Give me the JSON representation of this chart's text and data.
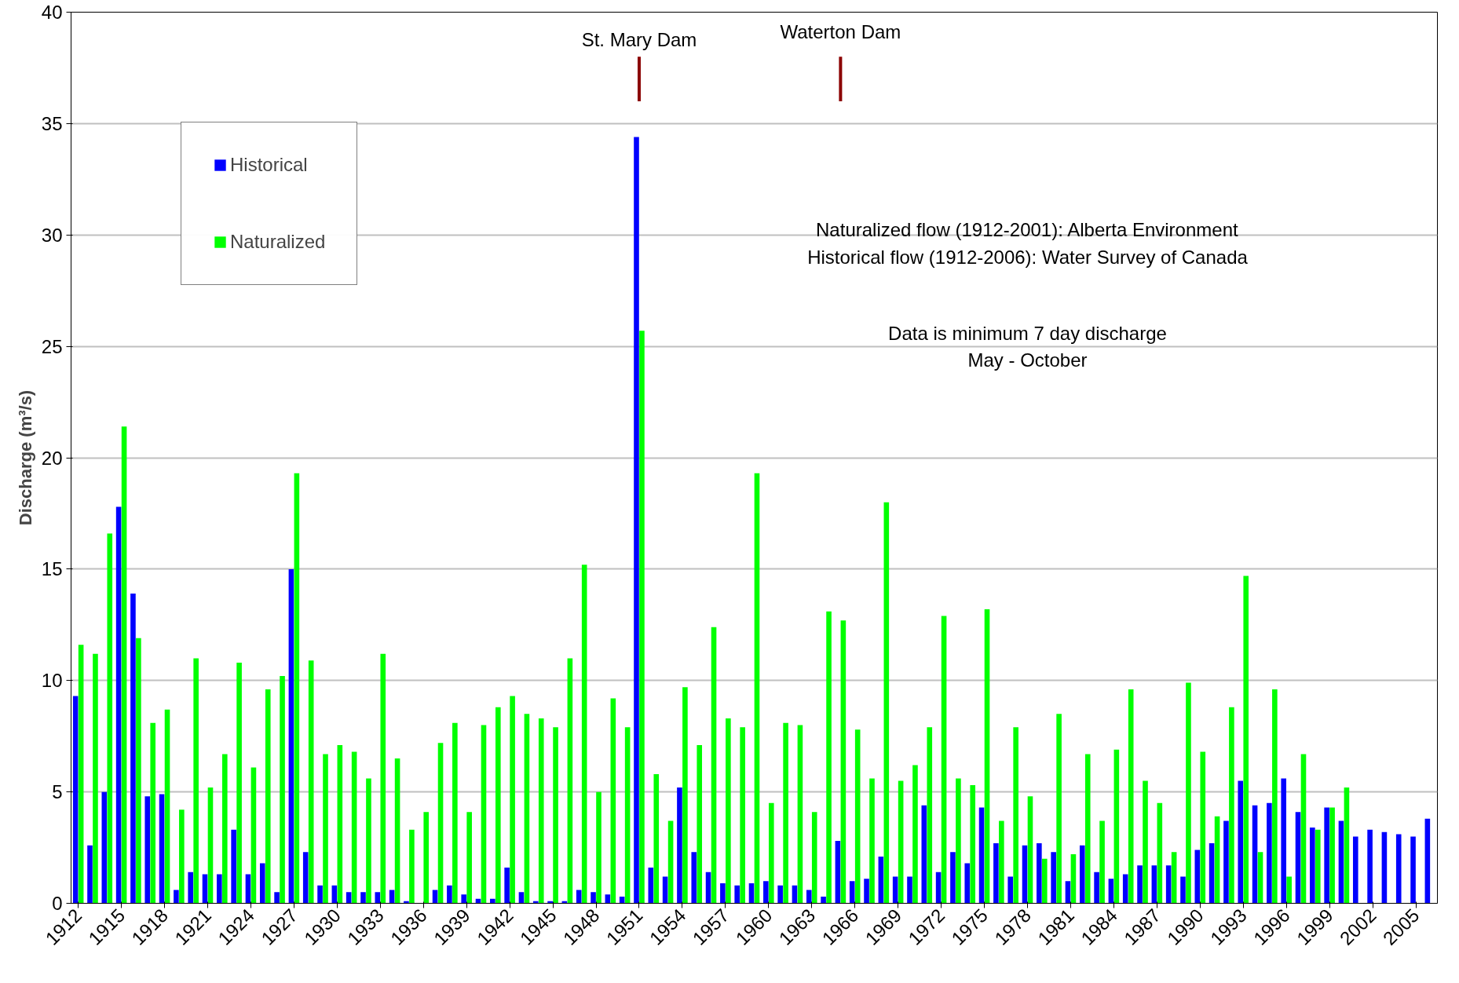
{
  "chart_data": {
    "type": "bar",
    "ylabel": "Discharge (m³/s)",
    "x": [
      1912,
      1913,
      1914,
      1915,
      1916,
      1917,
      1918,
      1919,
      1920,
      1921,
      1922,
      1923,
      1924,
      1925,
      1926,
      1927,
      1928,
      1929,
      1930,
      1931,
      1932,
      1933,
      1934,
      1935,
      1936,
      1937,
      1938,
      1939,
      1940,
      1941,
      1942,
      1943,
      1944,
      1945,
      1946,
      1947,
      1948,
      1949,
      1950,
      1951,
      1952,
      1953,
      1954,
      1955,
      1956,
      1957,
      1958,
      1959,
      1960,
      1961,
      1962,
      1963,
      1964,
      1965,
      1966,
      1967,
      1968,
      1969,
      1970,
      1971,
      1972,
      1973,
      1974,
      1975,
      1976,
      1977,
      1978,
      1979,
      1980,
      1981,
      1982,
      1983,
      1984,
      1985,
      1986,
      1987,
      1988,
      1989,
      1990,
      1991,
      1992,
      1993,
      1994,
      1995,
      1996,
      1997,
      1998,
      1999,
      2000,
      2001,
      2002,
      2003,
      2004,
      2005,
      2006
    ],
    "series": [
      {
        "name": "Historical",
        "color": "#0000ff",
        "values": [
          9.3,
          2.6,
          5.0,
          17.8,
          13.9,
          4.8,
          4.9,
          0.6,
          1.4,
          1.3,
          1.3,
          3.3,
          1.3,
          1.8,
          0.5,
          15.0,
          2.3,
          0.8,
          0.8,
          0.5,
          0.5,
          0.5,
          0.6,
          0.1,
          0.0,
          0.6,
          0.8,
          0.4,
          0.2,
          0.2,
          1.6,
          0.5,
          0.1,
          0.1,
          0.1,
          0.6,
          0.5,
          0.4,
          0.3,
          34.4,
          1.6,
          1.2,
          5.2,
          2.3,
          1.4,
          0.9,
          0.8,
          0.9,
          1.0,
          0.8,
          0.8,
          0.6,
          0.3,
          2.8,
          1.0,
          1.1,
          2.1,
          1.2,
          1.2,
          4.4,
          1.4,
          2.3,
          1.8,
          4.3,
          2.7,
          1.2,
          2.6,
          2.7,
          2.3,
          1.0,
          2.6,
          1.4,
          1.1,
          1.3,
          1.7,
          1.7,
          1.7,
          1.2,
          2.4,
          2.7,
          3.7,
          5.5,
          4.4,
          4.5,
          5.6,
          4.1,
          3.4,
          4.3,
          3.7,
          3.0,
          3.3,
          3.2,
          3.1,
          3.0,
          3.8
        ]
      },
      {
        "name": "Naturalized",
        "color": "#00ff00",
        "values": [
          11.6,
          11.2,
          16.6,
          21.4,
          11.9,
          8.1,
          8.7,
          4.2,
          11.0,
          5.2,
          6.7,
          10.8,
          6.1,
          9.6,
          10.2,
          19.3,
          10.9,
          6.7,
          7.1,
          6.8,
          5.6,
          11.2,
          6.5,
          3.3,
          4.1,
          7.2,
          8.1,
          4.1,
          8.0,
          8.8,
          9.3,
          8.5,
          8.3,
          7.9,
          11.0,
          15.2,
          5.0,
          9.2,
          7.9,
          25.7,
          5.8,
          3.7,
          9.7,
          7.1,
          12.4,
          8.3,
          7.9,
          19.3,
          4.5,
          8.1,
          8.0,
          4.1,
          13.1,
          12.7,
          7.8,
          5.6,
          18.0,
          5.5,
          6.2,
          7.9,
          12.9,
          5.6,
          5.3,
          13.2,
          3.7,
          7.9,
          4.8,
          2.0,
          8.5,
          2.2,
          6.7,
          3.7,
          6.9,
          9.6,
          5.5,
          4.5,
          2.3,
          9.9,
          6.8,
          3.9,
          8.8,
          14.7,
          2.3,
          9.6,
          1.2,
          6.7,
          3.3,
          4.3,
          5.2,
          null,
          null,
          null,
          null,
          null,
          null
        ]
      }
    ],
    "xlim": [
      1911.5,
      2006.5
    ],
    "xticks": [
      1912,
      1915,
      1918,
      1921,
      1924,
      1927,
      1930,
      1933,
      1936,
      1939,
      1942,
      1945,
      1948,
      1951,
      1954,
      1957,
      1960,
      1963,
      1966,
      1969,
      1972,
      1975,
      1978,
      1981,
      1984,
      1987,
      1990,
      1993,
      1996,
      1999,
      2002,
      2005
    ],
    "ylim": [
      0,
      40
    ],
    "yticks": [
      0,
      5,
      10,
      15,
      20,
      25,
      30,
      35,
      40
    ],
    "grid": "y",
    "ref_lines": [
      {
        "axis": "x",
        "value": 1951,
        "label": "St. Mary Dam",
        "color": "#8b0000"
      },
      {
        "axis": "x",
        "value": 1965,
        "label": "Waterton Dam",
        "color": "#8b0000"
      }
    ],
    "legend": "top left",
    "annotations": [
      "Naturalized flow (1912-2001): Alberta Environment",
      "Historical flow (1912-2006): Water Survey of Canada",
      "Data is minimum 7 day discharge",
      "May - October"
    ]
  }
}
